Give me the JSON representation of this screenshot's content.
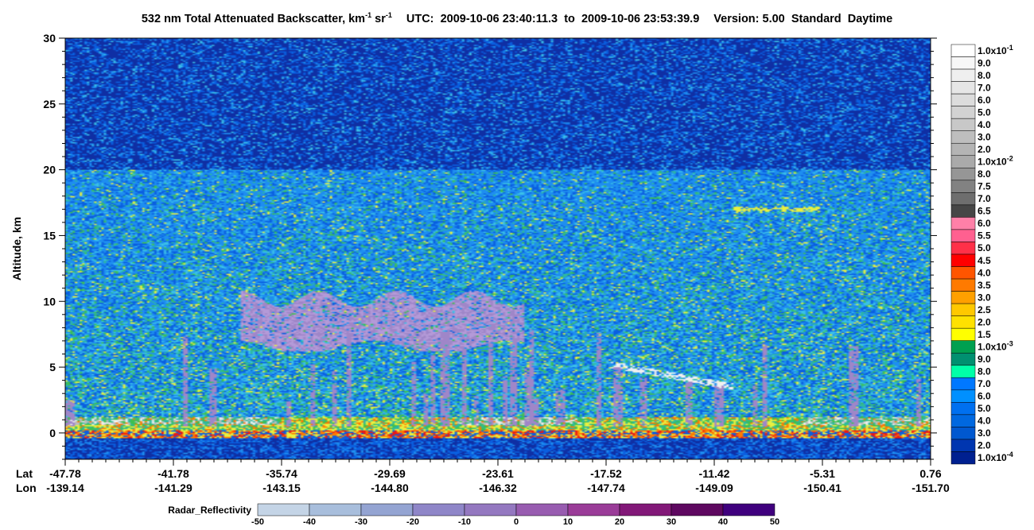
{
  "title": {
    "quantity": "532 nm Total Attenuated Backscatter, km",
    "unit_mid": " sr",
    "exp": "-1",
    "utc_label": "UTC:",
    "utc_start": "2009-10-06 23:40:11.3",
    "to": "to",
    "utc_end": "2009-10-06 23:53:39.9",
    "version": "Version: 5.00",
    "mode": "Standard",
    "daynight": "Daytime"
  },
  "chart_data": {
    "type": "heatmap",
    "ylabel": "Altitude, km",
    "ylim": [
      -2,
      30
    ],
    "y_ticks": [
      "0",
      "5",
      "10",
      "15",
      "20",
      "25",
      "30"
    ],
    "lat_head": "Lat",
    "lon_head": "Lon",
    "lat_ticks": [
      "-47.78",
      "-41.78",
      "-35.74",
      "-29.69",
      "-23.61",
      "-17.52",
      "-11.42",
      "-5.31",
      "0.76"
    ],
    "lon_ticks": [
      "-139.14",
      "-141.29",
      "-143.15",
      "-144.80",
      "-146.32",
      "-147.74",
      "-149.09",
      "-150.41",
      "-151.70"
    ],
    "colorbar": {
      "labels": [
        "1.0x10-1",
        "9.0",
        "8.0",
        "7.0",
        "6.0",
        "5.0",
        "4.0",
        "3.0",
        "2.0",
        "1.0x10-2",
        "8.0",
        "7.5",
        "7.0",
        "6.5",
        "6.0",
        "5.5",
        "5.0",
        "4.5",
        "4.0",
        "3.5",
        "3.0",
        "2.5",
        "2.0",
        "1.5",
        "1.0x10-3",
        "9.0",
        "8.0",
        "7.0",
        "6.0",
        "5.0",
        "4.0",
        "3.0",
        "2.0",
        "1.0x10-4"
      ],
      "colors": [
        "#ffffff",
        "#f7f7f7",
        "#efefef",
        "#e6e6e6",
        "#dcdcdc",
        "#d2d2d2",
        "#c8c8c8",
        "#bebebe",
        "#b4b4b4",
        "#aaaaaa",
        "#969696",
        "#828282",
        "#6e6e6e",
        "#464646",
        "#ff80a8",
        "#ff6090",
        "#ff3048",
        "#ff0000",
        "#ff5500",
        "#ff7a00",
        "#ffa000",
        "#ffc800",
        "#ffe100",
        "#ffff00",
        "#00a050",
        "#009070",
        "#00ffa8",
        "#0078ff",
        "#0090ff",
        "#0070f0",
        "#0068e0",
        "#0058d0",
        "#0036b0",
        "#002090"
      ]
    },
    "radar": {
      "title": "Radar_Reflectivity",
      "ticks": [
        "-50",
        "-40",
        "-30",
        "-20",
        "-10",
        "0",
        "10",
        "20",
        "30",
        "40",
        "50"
      ],
      "colors": [
        "#c4d4e6",
        "#a8bedc",
        "#94a4d2",
        "#8f86c8",
        "#9478c0",
        "#985cb0",
        "#9a3c98",
        "#821878",
        "#5e0860",
        "#40007e"
      ]
    },
    "features": {
      "noise_top_km": 30,
      "attenuated_noise_top_km": 20,
      "cirrus_band_km": [
        6.2,
        11.0
      ],
      "high_thin_layer_km": 17.0,
      "boundary_layer_top_km": 1.0,
      "surface_km": 0
    }
  }
}
